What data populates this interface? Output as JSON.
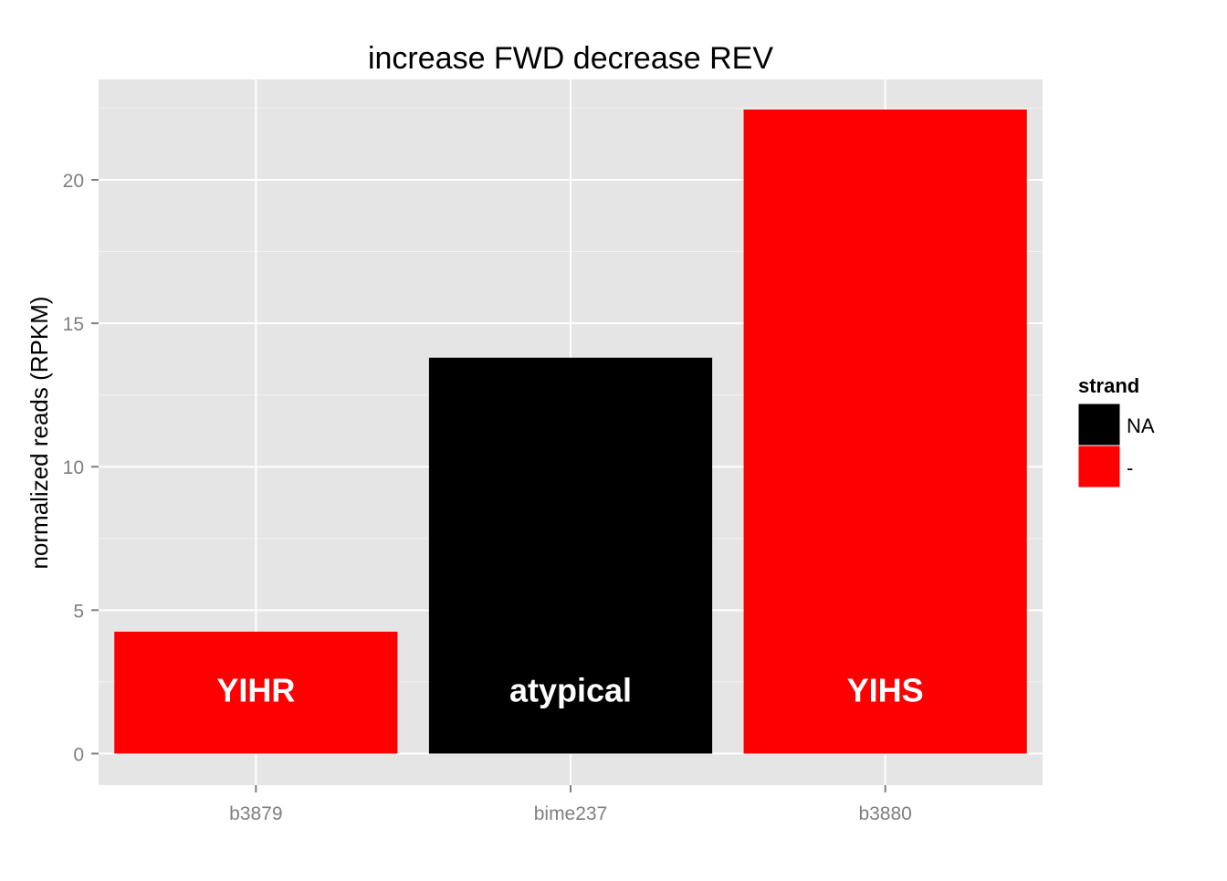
{
  "chart_data": {
    "type": "bar",
    "title": "increase FWD decrease REV",
    "xlabel": "",
    "ylabel": "normalized reads (RPKM)",
    "categories": [
      "b3879",
      "bime237",
      "b3880"
    ],
    "values": [
      4.25,
      13.8,
      22.45
    ],
    "bar_labels": [
      "YIHR",
      "atypical",
      "YIHS"
    ],
    "bar_strand": [
      "-",
      "NA",
      "-"
    ],
    "ylim": [
      -1.1,
      23.5
    ],
    "yticks": [
      0,
      5,
      10,
      15,
      20
    ],
    "ytick_labels": [
      "0",
      "5",
      "10",
      "15",
      "20"
    ],
    "grid": true,
    "legend": {
      "title": "strand",
      "position": "right",
      "entries": [
        {
          "label": "NA",
          "color": "#000000"
        },
        {
          "label": "-",
          "color": "#ff0000"
        }
      ]
    },
    "colors": {
      "panel_background": "#e5e5e5",
      "grid_major": "#ffffff",
      "grid_minor": "#f2f2f2",
      "tick_text": "#7f7f7f"
    }
  }
}
